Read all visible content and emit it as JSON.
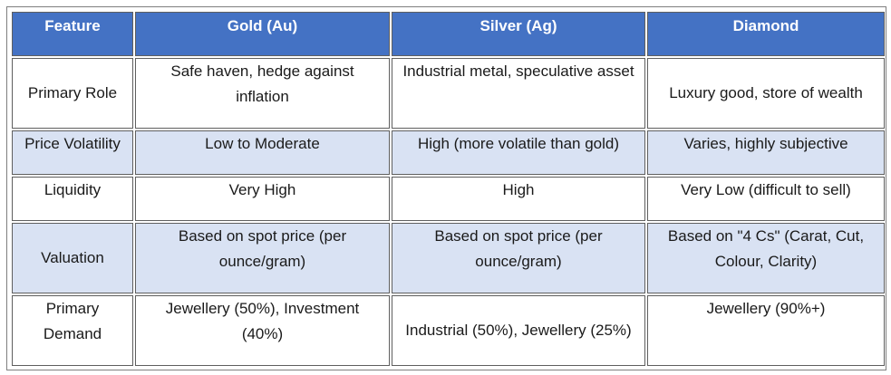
{
  "table": {
    "headers": [
      "Feature",
      "Gold (Au)",
      "Silver (Ag)",
      "Diamond"
    ],
    "rows": [
      {
        "feature": "Primary Role",
        "gold": "Safe haven, hedge against inflation",
        "silver": "Industrial metal, speculative asset",
        "diamond": "Luxury good, store of wealth"
      },
      {
        "feature": "Price Volatility",
        "gold": "Low to Moderate",
        "silver": "High (more volatile than gold)",
        "diamond": "Varies, highly subjective"
      },
      {
        "feature": "Liquidity",
        "gold": "Very High",
        "silver": "High",
        "diamond": "Very Low (difficult to sell)"
      },
      {
        "feature": "Valuation",
        "gold": "Based on spot price (per ounce/gram)",
        "silver": "Based on spot price (per ounce/gram)",
        "diamond": "Based on \"4 Cs\" (Carat, Cut, Colour, Clarity)"
      },
      {
        "feature": "Primary Demand",
        "gold": "Jewellery (50%), Investment (40%)",
        "silver": "Industrial (50%), Jewellery (25%)",
        "diamond": "Jewellery (90%+)"
      }
    ],
    "colors": {
      "header_bg": "#4472c4",
      "header_text": "#ffffff",
      "shaded_row_bg": "#d9e2f3",
      "plain_row_bg": "#ffffff",
      "border": "#5f5f5f"
    }
  }
}
